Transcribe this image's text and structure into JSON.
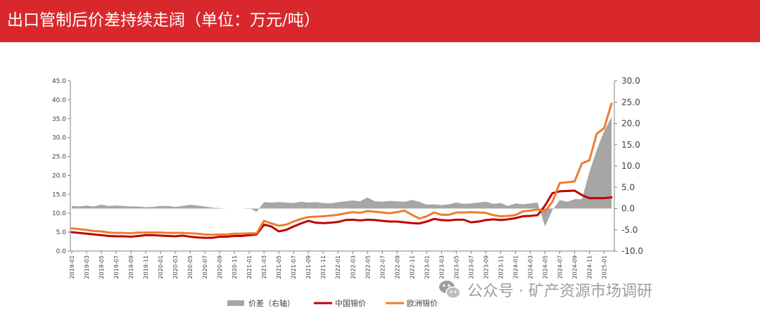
{
  "header": {
    "title": "出口管制后价差持续走阔（单位：万元/吨）"
  },
  "watermark": {
    "text": "公众号 · 矿产资源市场调研",
    "icon": "wechat-icon"
  },
  "colors": {
    "banner": "#d8282c",
    "spread": "#a6a6a6",
    "china": "#c00000",
    "europe": "#ed7d31"
  },
  "chart_data": {
    "type": "line",
    "title": "",
    "y_left": {
      "ylim": [
        0,
        45
      ],
      "ticks": [
        "0.0",
        "5.0",
        "10.0",
        "15.0",
        "20.0",
        "25.0",
        "30.0",
        "35.0",
        "40.0",
        "45.0"
      ]
    },
    "y_right": {
      "ylim": [
        -10,
        30
      ],
      "ticks": [
        "-10.0",
        "-5.0",
        "0.0",
        "5.0",
        "10.0",
        "15.0",
        "20.0",
        "25.0",
        "30.0"
      ]
    },
    "x_tick_labels": [
      "2019-01",
      "2019-03",
      "2019-05",
      "2019-07",
      "2019-09",
      "2019-11",
      "2020-01",
      "2020-03",
      "2020-05",
      "2020-07",
      "2020-09",
      "2020-11",
      "2021-01",
      "2021-03",
      "2021-05",
      "2021-07",
      "2021-09",
      "2021-11",
      "2022-01",
      "2022-03",
      "2022-05",
      "2022-07",
      "2022-09",
      "2022-11",
      "2023-01",
      "2023-03",
      "2023-05",
      "2023-07",
      "2023-09",
      "2023-11",
      "2024-01",
      "2024-03",
      "2024-05",
      "2024-07",
      "2024-09",
      "2024-11",
      "2025-01"
    ],
    "grid": false,
    "legend_position": "bottom",
    "x": [
      "2019-01",
      "2019-02",
      "2019-03",
      "2019-04",
      "2019-05",
      "2019-06",
      "2019-07",
      "2019-08",
      "2019-09",
      "2019-10",
      "2019-11",
      "2019-12",
      "2020-01",
      "2020-02",
      "2020-03",
      "2020-04",
      "2020-05",
      "2020-06",
      "2020-07",
      "2020-08",
      "2020-09",
      "2020-10",
      "2020-11",
      "2020-12",
      "2021-01",
      "2021-02",
      "2021-03",
      "2021-04",
      "2021-05",
      "2021-06",
      "2021-07",
      "2021-08",
      "2021-09",
      "2021-10",
      "2021-11",
      "2021-12",
      "2022-01",
      "2022-02",
      "2022-03",
      "2022-04",
      "2022-05",
      "2022-06",
      "2022-07",
      "2022-08",
      "2022-09",
      "2022-10",
      "2022-11",
      "2022-12",
      "2023-01",
      "2023-02",
      "2023-03",
      "2023-04",
      "2023-05",
      "2023-06",
      "2023-07",
      "2023-08",
      "2023-09",
      "2023-10",
      "2023-11",
      "2023-12",
      "2024-01",
      "2024-02",
      "2024-03",
      "2024-04",
      "2024-05",
      "2024-06",
      "2024-07",
      "2024-08",
      "2024-09",
      "2024-10",
      "2024-11",
      "2024-12",
      "2025-01",
      "2025-02"
    ],
    "series": [
      {
        "name": "价差（右轴）",
        "axis": "right",
        "kind": "area",
        "values": [
          0.6,
          0.5,
          0.7,
          0.5,
          0.9,
          0.6,
          0.7,
          0.6,
          0.5,
          0.5,
          0.3,
          0.4,
          0.6,
          0.6,
          0.4,
          0.6,
          0.9,
          0.7,
          0.5,
          0.2,
          0.1,
          0.0,
          0.0,
          0.0,
          0.1,
          -0.8,
          1.5,
          1.4,
          1.5,
          1.4,
          1.3,
          1.6,
          1.4,
          1.5,
          1.3,
          1.2,
          1.5,
          1.7,
          1.9,
          1.7,
          2.6,
          1.7,
          1.6,
          1.8,
          1.7,
          1.6,
          2.0,
          1.6,
          0.9,
          1.0,
          0.8,
          1.0,
          1.4,
          1.1,
          1.2,
          1.4,
          1.6,
          1.1,
          1.3,
          0.6,
          1.2,
          1.0,
          1.2,
          1.4,
          -4.2,
          -0.4,
          2.0,
          1.6,
          2.2,
          2.2,
          8.5,
          13.8,
          18.2,
          21.5
        ]
      },
      {
        "name": "中国锡价",
        "axis": "left",
        "kind": "line",
        "values": [
          5.0,
          4.8,
          4.6,
          4.4,
          4.2,
          4.0,
          3.9,
          3.9,
          3.8,
          4.0,
          4.2,
          4.2,
          4.1,
          4.0,
          3.9,
          4.1,
          3.8,
          3.6,
          3.5,
          3.5,
          3.8,
          3.8,
          4.0,
          4.0,
          4.2,
          4.4,
          7.0,
          6.5,
          5.2,
          5.6,
          6.5,
          7.3,
          8.0,
          7.5,
          7.4,
          7.5,
          7.7,
          8.2,
          8.3,
          8.1,
          8.3,
          8.2,
          8.0,
          7.8,
          7.8,
          7.6,
          7.4,
          7.3,
          7.8,
          8.5,
          8.2,
          8.1,
          8.3,
          8.3,
          7.6,
          7.8,
          8.2,
          8.4,
          8.2,
          8.4,
          8.7,
          9.2,
          9.3,
          9.5,
          12.0,
          15.3,
          15.8,
          15.9,
          16.0,
          14.8,
          14.0,
          14.0,
          14.0,
          14.2
        ]
      },
      {
        "name": "欧洲锡价",
        "axis": "left",
        "kind": "line",
        "values": [
          6.0,
          5.8,
          5.6,
          5.3,
          5.2,
          4.9,
          4.8,
          4.8,
          4.7,
          4.9,
          4.9,
          4.9,
          4.9,
          4.8,
          4.8,
          4.8,
          4.7,
          4.6,
          4.4,
          4.3,
          4.4,
          4.4,
          4.6,
          4.6,
          4.7,
          4.7,
          8.0,
          7.3,
          6.7,
          7.0,
          7.8,
          8.5,
          9.0,
          9.1,
          9.2,
          9.4,
          9.6,
          10.0,
          10.3,
          10.1,
          10.6,
          10.4,
          10.2,
          10.0,
          10.3,
          10.7,
          9.6,
          8.6,
          9.2,
          10.2,
          9.6,
          9.6,
          10.2,
          10.2,
          10.3,
          10.2,
          10.1,
          9.5,
          9.2,
          9.3,
          9.5,
          10.5,
          10.7,
          11.0,
          10.5,
          13.0,
          18.0,
          18.2,
          18.4,
          23.2,
          24.0,
          31.0,
          32.5,
          39.0
        ]
      }
    ]
  }
}
